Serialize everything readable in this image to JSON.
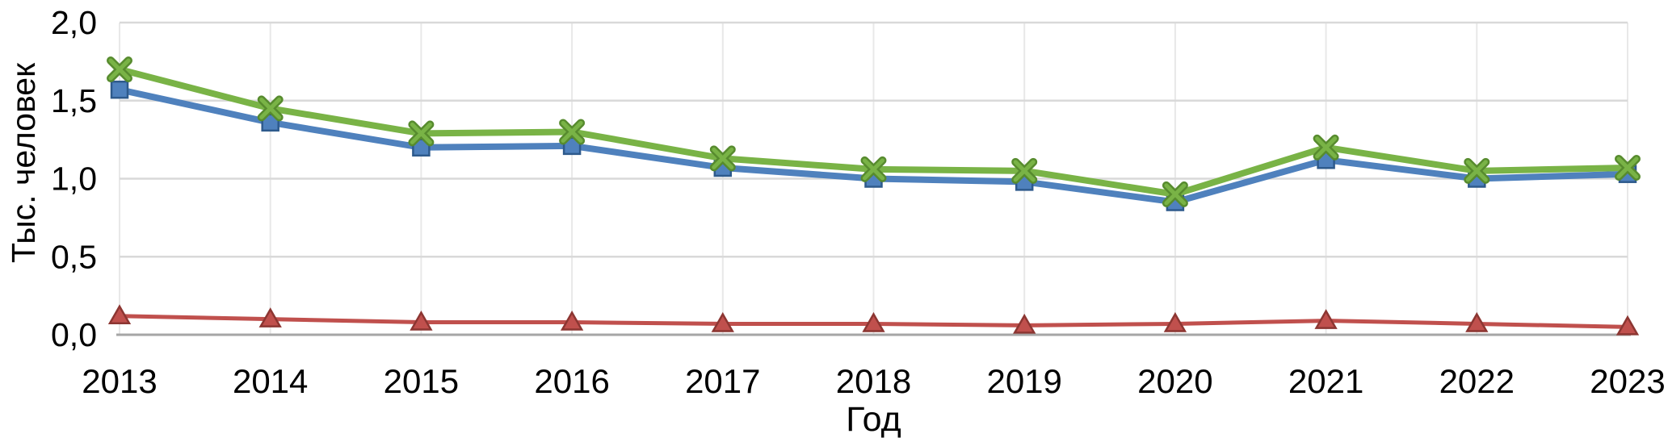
{
  "background": "#FFFFFF",
  "chart_data": {
    "type": "line",
    "title": "",
    "xlabel": "Год",
    "ylabel": "Тыс. человек",
    "categories": [
      "2013",
      "2014",
      "2015",
      "2016",
      "2017",
      "2018",
      "2019",
      "2020",
      "2021",
      "2022",
      "2023"
    ],
    "ylim": [
      0,
      2
    ],
    "y_ticks": [
      {
        "value": 0.0,
        "label": "0,0"
      },
      {
        "value": 0.5,
        "label": "0,5"
      },
      {
        "value": 1.0,
        "label": "1,0"
      },
      {
        "value": 1.5,
        "label": "1,5"
      },
      {
        "value": 2.0,
        "label": "2,0"
      }
    ],
    "grid": {
      "horizontal": true,
      "vertical": true
    },
    "legend_position": "none",
    "series": [
      {
        "name": "blue-square-series",
        "marker": "square",
        "color": "#4F81BD",
        "marker_border": "#2E5A8C",
        "line_width": 8,
        "values": [
          1.57,
          1.36,
          1.2,
          1.21,
          1.07,
          1.0,
          0.98,
          0.85,
          1.12,
          1.0,
          1.03
        ]
      },
      {
        "name": "red-triangle-series",
        "marker": "triangle",
        "color": "#C0504D",
        "marker_border": "#8C3632",
        "line_width": 5,
        "values": [
          0.12,
          0.1,
          0.08,
          0.08,
          0.07,
          0.07,
          0.06,
          0.07,
          0.09,
          0.07,
          0.05
        ]
      },
      {
        "name": "green-x-series",
        "marker": "x",
        "color": "#79B346",
        "marker_border": "#578B2E",
        "line_width": 8,
        "values": [
          1.7,
          1.45,
          1.29,
          1.3,
          1.13,
          1.06,
          1.05,
          0.9,
          1.2,
          1.05,
          1.07
        ]
      }
    ],
    "style": {
      "grid_color_h": "#D9D9D9",
      "grid_color_v": "#E8E8E8",
      "axis_line_color": "#A6A6A6",
      "tick_font_size": 41,
      "x_tick_font_size": 42
    }
  }
}
